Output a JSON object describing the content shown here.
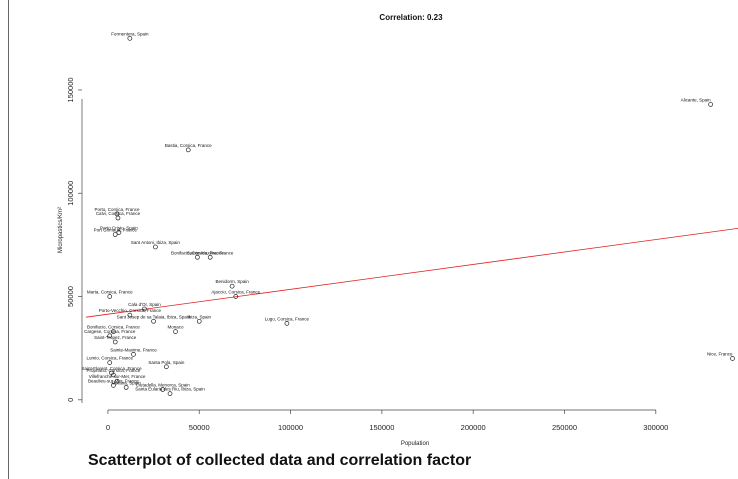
{
  "caption": "Scatterplot of collected data and correlation factor",
  "chart_data": {
    "type": "scatter",
    "title": "Correlation: 0.23",
    "xlabel": "Population",
    "ylabel": "Micropastics/Km²",
    "xlim": [
      -12000,
      345000
    ],
    "ylim": [
      -3000,
      180000
    ],
    "x_ticks": [
      0,
      50000,
      100000,
      150000,
      200000,
      250000,
      300000
    ],
    "x_tick_labels": [
      "0",
      "50000",
      "100000",
      "150000",
      "200000",
      "250000",
      "300000"
    ],
    "y_ticks": [
      0,
      50000,
      100000,
      150000
    ],
    "y_tick_labels": [
      "0",
      "50000",
      "100000",
      "150000"
    ],
    "grid": false,
    "regression_line": {
      "x": [
        -12000,
        345000
      ],
      "y": [
        40000,
        83000
      ],
      "color": "#e02020"
    },
    "points": [
      {
        "label": "Formentera, Spain",
        "x": 12000,
        "y": 175000
      },
      {
        "label": "Alicante, Spain",
        "x": 330000,
        "y": 143000
      },
      {
        "label": "Bastia, Corsica, France",
        "x": 44000,
        "y": 121000
      },
      {
        "label": "Porto, Corsica, France",
        "x": 5000,
        "y": 90000
      },
      {
        "label": "Calvi, Corsica, France",
        "x": 5500,
        "y": 88000
      },
      {
        "label": "Porto Cristo, Spain",
        "x": 6000,
        "y": 81000
      },
      {
        "label": "Port Grimaud, France",
        "x": 4000,
        "y": 80000
      },
      {
        "label": "Sant Antoni, Ibiza, Spain",
        "x": 26000,
        "y": 74000
      },
      {
        "label": "Bonifacio, Corsica, France",
        "x": 49000,
        "y": 69000
      },
      {
        "label": "Sainte-Maxime, France",
        "x": 56000,
        "y": 69000
      },
      {
        "label": "Benidorm, Spain",
        "x": 68000,
        "y": 55000
      },
      {
        "label": "Ajaccio, Corsica, France",
        "x": 70000,
        "y": 50000
      },
      {
        "label": "Marta, Corsica, France",
        "x": 1000,
        "y": 50000
      },
      {
        "label": "Cala d'Or, Spain",
        "x": 20000,
        "y": 44000
      },
      {
        "label": "Porto-Vecchio, Corsica, France",
        "x": 12000,
        "y": 41000
      },
      {
        "label": "Sant Josep de sa Talaia, Ibiza, Spain",
        "x": 25000,
        "y": 38000
      },
      {
        "label": "Ibiza, Spain",
        "x": 50000,
        "y": 38000
      },
      {
        "label": "Lugo, Corsica, France",
        "x": 98000,
        "y": 37000
      },
      {
        "label": "Bonifacio, Corsica, France",
        "x": 3000,
        "y": 33000
      },
      {
        "label": "Monaco",
        "x": 37000,
        "y": 33000
      },
      {
        "label": "Cargese, Corsica, France",
        "x": 1000,
        "y": 31000
      },
      {
        "label": "Saint-Tropez, France",
        "x": 4000,
        "y": 28000
      },
      {
        "label": "Sainte-Maxime, France",
        "x": 14000,
        "y": 22000
      },
      {
        "label": "Santa Pola, Spain",
        "x": 32000,
        "y": 16000
      },
      {
        "label": "Lumio, Corsica, France",
        "x": 1000,
        "y": 18000
      },
      {
        "label": "Nice, France",
        "x": 342000,
        "y": 20000
      },
      {
        "label": "Saint-Florent, Corsica, France",
        "x": 2000,
        "y": 13000
      },
      {
        "label": "Propriano, Corsica, France",
        "x": 3000,
        "y": 12000
      },
      {
        "label": "Villefranche-sur-Mer, France",
        "x": 5000,
        "y": 9000
      },
      {
        "label": "Beaulieu-sur-Mer, France",
        "x": 3000,
        "y": 7000
      },
      {
        "label": "Moraira, Spain",
        "x": 10000,
        "y": 6000
      },
      {
        "label": "Ciutadella, Menorca, Spain",
        "x": 30000,
        "y": 5000
      },
      {
        "label": "Santa Eularia des Riu, Ibiza, Spain",
        "x": 34000,
        "y": 3000
      }
    ]
  }
}
